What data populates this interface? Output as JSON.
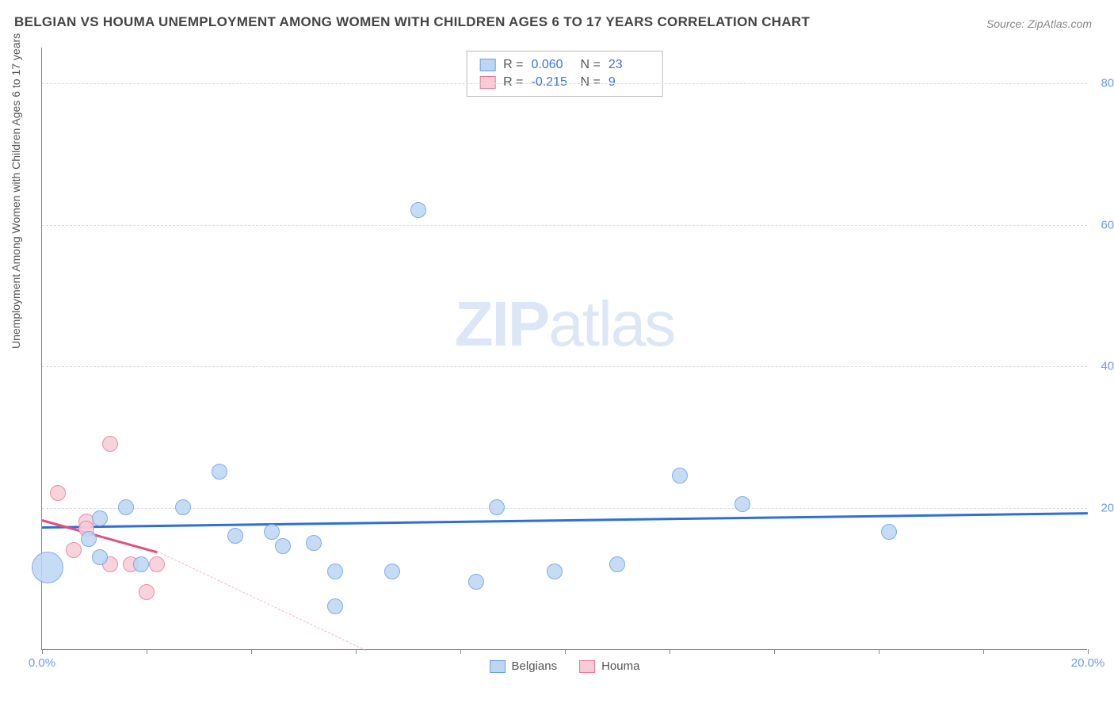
{
  "title": "BELGIAN VS HOUMA UNEMPLOYMENT AMONG WOMEN WITH CHILDREN AGES 6 TO 17 YEARS CORRELATION CHART",
  "source": "Source: ZipAtlas.com",
  "y_axis_label": "Unemployment Among Women with Children Ages 6 to 17 years",
  "watermark_zip": "ZIP",
  "watermark_atlas": "atlas",
  "chart": {
    "type": "scatter",
    "xlim": [
      0,
      20
    ],
    "ylim": [
      0,
      85
    ],
    "y_ticks": [
      20,
      40,
      60,
      80
    ],
    "y_tick_labels": [
      "20.0%",
      "40.0%",
      "60.0%",
      "80.0%"
    ],
    "x_ticks": [
      0,
      2,
      4,
      6,
      8,
      10,
      12,
      14,
      16,
      18,
      20
    ],
    "x_tick_labels_shown": {
      "0": "0.0%",
      "20": "20.0%"
    },
    "grid_color": "#dddddd",
    "axis_color": "#888888",
    "background": "#ffffff",
    "tick_label_color": "#6a9eea",
    "series": {
      "belgians": {
        "label": "Belgians",
        "fill": "#bcd6f3",
        "stroke": "#6a9eea",
        "stroke_width": 1.5,
        "marker_radius": 10,
        "trend": {
          "y_at_x0": 17.5,
          "y_at_xmax": 19.5,
          "color": "#2e6fd9",
          "width": 3,
          "style": "solid"
        },
        "points": [
          {
            "x": 0.1,
            "y": 11.5,
            "r": 20
          },
          {
            "x": 0.9,
            "y": 15.5
          },
          {
            "x": 1.1,
            "y": 13.0
          },
          {
            "x": 1.1,
            "y": 18.5
          },
          {
            "x": 1.6,
            "y": 20.0
          },
          {
            "x": 1.9,
            "y": 12.0
          },
          {
            "x": 2.7,
            "y": 20.0
          },
          {
            "x": 3.4,
            "y": 25.0
          },
          {
            "x": 3.7,
            "y": 16.0
          },
          {
            "x": 4.4,
            "y": 16.5
          },
          {
            "x": 4.6,
            "y": 14.5
          },
          {
            "x": 5.2,
            "y": 15.0
          },
          {
            "x": 5.6,
            "y": 11.0
          },
          {
            "x": 5.6,
            "y": 6.0
          },
          {
            "x": 6.7,
            "y": 11.0
          },
          {
            "x": 7.2,
            "y": 62.0
          },
          {
            "x": 8.3,
            "y": 9.5
          },
          {
            "x": 8.7,
            "y": 20.0
          },
          {
            "x": 9.8,
            "y": 11.0
          },
          {
            "x": 11.0,
            "y": 12.0
          },
          {
            "x": 12.2,
            "y": 24.5
          },
          {
            "x": 13.4,
            "y": 20.5
          },
          {
            "x": 16.2,
            "y": 16.5
          }
        ]
      },
      "houma": {
        "label": "Houma",
        "fill": "#f7ccd6",
        "stroke": "#e87a9b",
        "stroke_width": 1.5,
        "marker_radius": 10,
        "trend_solid": {
          "y_at_x0": 18.5,
          "y_at_x": 2.2,
          "y_val": 14.0,
          "color": "#e04f7a",
          "width": 3
        },
        "trend_dashed": {
          "x1": 2.2,
          "y1": 14.0,
          "x2": 6.2,
          "y2": 0.0,
          "color": "#f0b8c8",
          "width": 1.5
        },
        "points": [
          {
            "x": 0.3,
            "y": 22.0
          },
          {
            "x": 0.6,
            "y": 14.0
          },
          {
            "x": 0.85,
            "y": 18.0
          },
          {
            "x": 0.85,
            "y": 17.0
          },
          {
            "x": 1.3,
            "y": 29.0
          },
          {
            "x": 1.3,
            "y": 12.0
          },
          {
            "x": 1.7,
            "y": 12.0
          },
          {
            "x": 2.0,
            "y": 8.0
          },
          {
            "x": 2.2,
            "y": 12.0
          }
        ]
      }
    }
  },
  "stats": [
    {
      "series": "belgians",
      "r_label": "R =",
      "r": "0.060",
      "n_label": "N =",
      "n": "23"
    },
    {
      "series": "houma",
      "r_label": "R =",
      "r": "-0.215",
      "n_label": "N =",
      "n": "9"
    }
  ],
  "colors": {
    "title": "#444444",
    "source": "#888888",
    "stats_text": "#555555",
    "stats_value": "#3b74d8"
  }
}
